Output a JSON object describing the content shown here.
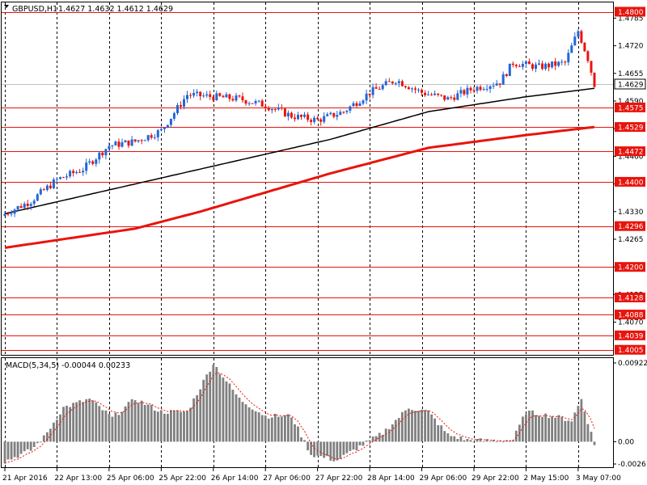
{
  "chart_data": [
    {
      "type": "candlestick",
      "symbol_header": "GBPUSD,H1",
      "ohlc_header": "1.4627 1.4632 1.4612 1.4629",
      "y_ticks": [
        "1.4785",
        "1.4720",
        "1.4655",
        "1.4590",
        "1.4525",
        "1.4460",
        "1.4395",
        "1.4330",
        "1.4265",
        "1.4200",
        "1.4135",
        "1.4070"
      ],
      "y_tick_values": [
        1.4785,
        1.472,
        1.4655,
        1.459,
        1.4525,
        1.446,
        1.4395,
        1.433,
        1.4265,
        1.42,
        1.4135,
        1.407
      ],
      "ylim": [
        1.3995,
        1.482
      ],
      "x_labels": [
        "21 Apr 2016",
        "22 Apr 13:00",
        "25 Apr 06:00",
        "25 Apr 22:00",
        "26 Apr 14:00",
        "27 Apr 06:00",
        "27 Apr 22:00",
        "28 Apr 14:00",
        "29 Apr 06:00",
        "29 Apr 22:00",
        "2 May 15:00",
        "3 May 07:00"
      ],
      "x_label_bars": [
        0,
        16,
        32,
        48,
        64,
        80,
        96,
        112,
        128,
        144,
        160,
        176
      ],
      "level_lines": [
        {
          "value": 1.48,
          "label": "1.4800"
        },
        {
          "value": 1.4575,
          "label": "1.4575"
        },
        {
          "value": 1.4529,
          "label": "1.4529"
        },
        {
          "value": 1.4472,
          "label": "1.4472"
        },
        {
          "value": 1.44,
          "label": "1.4400"
        },
        {
          "value": 1.4296,
          "label": "1.4296"
        },
        {
          "value": 1.42,
          "label": "1.4200"
        },
        {
          "value": 1.4128,
          "label": "1.4128"
        },
        {
          "value": 1.4088,
          "label": "1.4088"
        },
        {
          "value": 1.4039,
          "label": "1.4039"
        },
        {
          "value": 1.4005,
          "label": "1.4005"
        }
      ],
      "current_price": {
        "value": 1.4629,
        "label": "1.4629"
      },
      "close_anchors": [
        [
          0,
          1.4325
        ],
        [
          8,
          1.4355
        ],
        [
          16,
          1.4405
        ],
        [
          24,
          1.443
        ],
        [
          32,
          1.4485
        ],
        [
          40,
          1.4495
        ],
        [
          48,
          1.452
        ],
        [
          56,
          1.4605
        ],
        [
          64,
          1.46
        ],
        [
          72,
          1.4595
        ],
        [
          80,
          1.458
        ],
        [
          88,
          1.4555
        ],
        [
          96,
          1.4545
        ],
        [
          104,
          1.4565
        ],
        [
          112,
          1.461
        ],
        [
          120,
          1.464
        ],
        [
          128,
          1.461
        ],
        [
          136,
          1.4595
        ],
        [
          144,
          1.462
        ],
        [
          152,
          1.4635
        ],
        [
          156,
          1.468
        ],
        [
          164,
          1.467
        ],
        [
          172,
          1.468
        ],
        [
          176,
          1.4755
        ],
        [
          179,
          1.469
        ],
        [
          181,
          1.4629
        ]
      ],
      "series": [
        {
          "name": "MA slow",
          "color": "#000000",
          "anchors": [
            [
              0,
              1.4325
            ],
            [
              40,
              1.4395
            ],
            [
              60,
              1.443
            ],
            [
              100,
              1.45
            ],
            [
              130,
              1.4565
            ],
            [
              160,
              1.46
            ],
            [
              181,
              1.462
            ]
          ]
        },
        {
          "name": "MA 200",
          "color": "#e8140d",
          "anchors": [
            [
              0,
              1.4245
            ],
            [
              40,
              1.429
            ],
            [
              60,
              1.433
            ],
            [
              100,
              1.442
            ],
            [
              130,
              1.448
            ],
            [
              160,
              1.451
            ],
            [
              181,
              1.4529
            ]
          ]
        }
      ],
      "bull_color": "#2266d6",
      "bear_color": "#e8140d",
      "level_color": "#e8140d"
    },
    {
      "type": "bar",
      "title": "MACD(5,34,5) -0.00044 0.00233",
      "y_ticks": [
        "0.00922",
        "0.00",
        "-0.00261"
      ],
      "y_tick_values": [
        0.00922,
        0.0,
        -0.00261
      ],
      "ylim": [
        -0.00261,
        0.00922
      ],
      "macd_anchors": [
        [
          0,
          -0.0023
        ],
        [
          8,
          -0.001
        ],
        [
          12,
          0.0005
        ],
        [
          18,
          0.004
        ],
        [
          26,
          0.005
        ],
        [
          33,
          0.0028
        ],
        [
          40,
          0.005
        ],
        [
          48,
          0.0035
        ],
        [
          56,
          0.0035
        ],
        [
          64,
          0.0092
        ],
        [
          72,
          0.005
        ],
        [
          80,
          0.003
        ],
        [
          88,
          0.003
        ],
        [
          94,
          -0.0015
        ],
        [
          102,
          -0.0022
        ],
        [
          108,
          -0.0008
        ],
        [
          116,
          0.001
        ],
        [
          124,
          0.004
        ],
        [
          130,
          0.0035
        ],
        [
          136,
          0.0008
        ],
        [
          142,
          0.0002
        ],
        [
          148,
          0.0001
        ],
        [
          156,
          0.0002
        ],
        [
          160,
          0.0035
        ],
        [
          168,
          0.003
        ],
        [
          174,
          0.0025
        ],
        [
          177,
          0.005
        ],
        [
          180,
          0.001
        ],
        [
          181,
          -0.0004
        ]
      ],
      "bar_color": "#808080",
      "signal_color": "#e8140d",
      "signal_value": 0.00233
    }
  ]
}
